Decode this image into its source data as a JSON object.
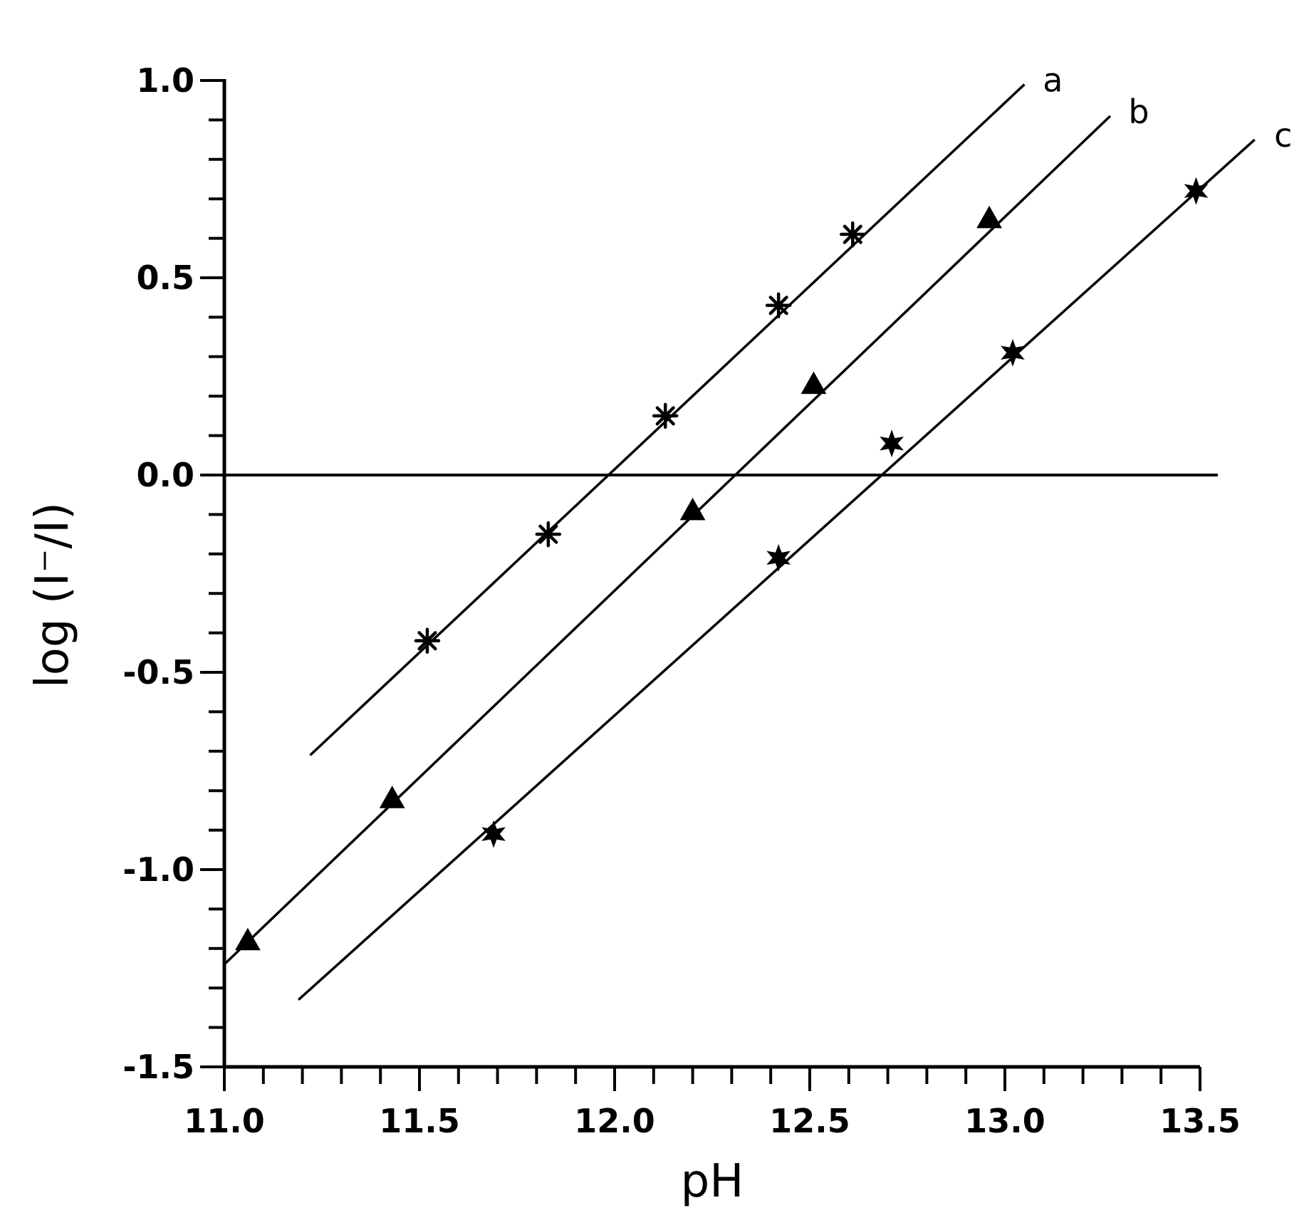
{
  "chart_data": {
    "type": "line",
    "xlabel": "pH",
    "ylabel": "log (I⁻/I)",
    "xlim": [
      11.0,
      13.5
    ],
    "ylim": [
      -1.5,
      1.0
    ],
    "x_ticks": [
      "11.0",
      "11.5",
      "12.0",
      "12.5",
      "13.0",
      "13.5"
    ],
    "y_ticks": [
      "1.0",
      "0.5",
      "0.0",
      "-0.5",
      "-1.0",
      "-1.5"
    ],
    "x_tick_values": [
      11.0,
      11.5,
      12.0,
      12.5,
      13.0,
      13.5
    ],
    "y_tick_values": [
      1.0,
      0.5,
      0.0,
      -0.5,
      -1.0,
      -1.5
    ],
    "x_minor_step": 0.1,
    "y_minor_step": 0.1,
    "grid": false,
    "reference_line": {
      "y": 0.0
    },
    "series": [
      {
        "name": "a",
        "marker": "asterisk",
        "line": {
          "x": [
            11.22,
            13.05
          ],
          "y": [
            -0.71,
            0.99
          ]
        },
        "points": [
          {
            "x": 11.52,
            "y": -0.42
          },
          {
            "x": 11.83,
            "y": -0.15
          },
          {
            "x": 12.13,
            "y": 0.15
          },
          {
            "x": 12.42,
            "y": 0.43
          },
          {
            "x": 12.61,
            "y": 0.61
          }
        ]
      },
      {
        "name": "b",
        "marker": "triangle",
        "line": {
          "x": [
            11.0,
            13.27
          ],
          "y": [
            -1.24,
            0.91
          ]
        },
        "points": [
          {
            "x": 11.06,
            "y": -1.18
          },
          {
            "x": 11.43,
            "y": -0.82
          },
          {
            "x": 12.2,
            "y": -0.09
          },
          {
            "x": 12.51,
            "y": 0.23
          },
          {
            "x": 12.96,
            "y": 0.65
          }
        ]
      },
      {
        "name": "c",
        "marker": "star",
        "line": {
          "x": [
            11.19,
            13.64
          ],
          "y": [
            -1.33,
            0.85
          ]
        },
        "points": [
          {
            "x": 11.69,
            "y": -0.91
          },
          {
            "x": 12.42,
            "y": -0.21
          },
          {
            "x": 12.71,
            "y": 0.08
          },
          {
            "x": 13.02,
            "y": 0.31
          },
          {
            "x": 13.49,
            "y": 0.72
          }
        ]
      }
    ]
  }
}
